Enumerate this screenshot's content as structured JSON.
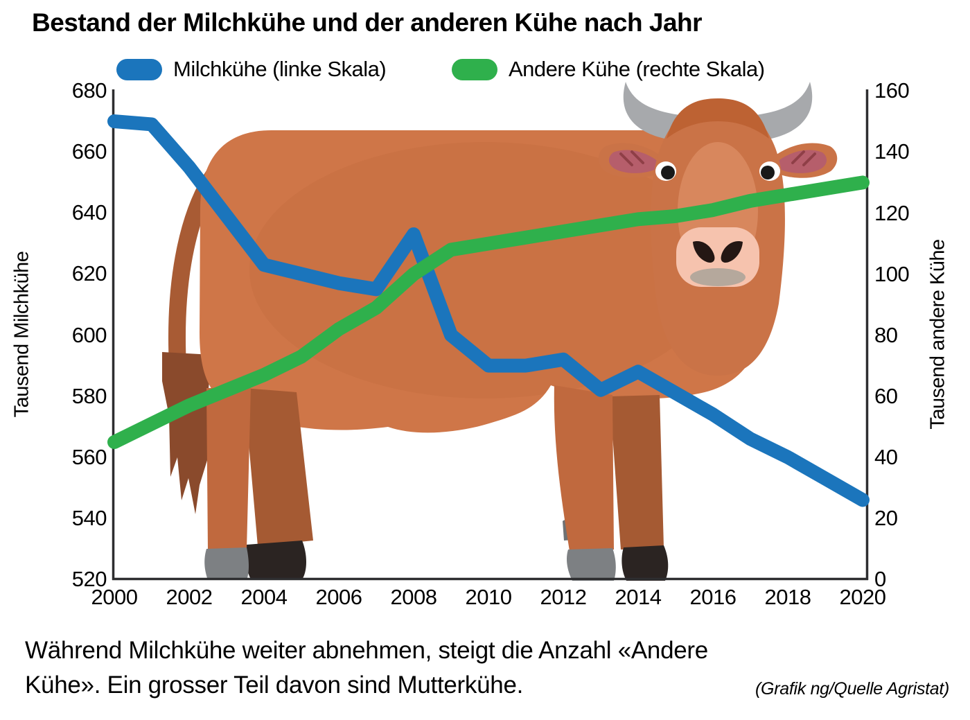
{
  "title": "Bestand der Milchkühe und der anderen Kühe nach Jahr",
  "legend": {
    "milk_label": "Milchkühe (linke Skala)",
    "other_label": "Andere Kühe (rechte Skala)"
  },
  "colors": {
    "milk_line": "#1b75bc",
    "other_line": "#2fb04c",
    "axis": "#2e2e30"
  },
  "chart_data": {
    "type": "line",
    "x": [
      2000,
      2001,
      2002,
      2003,
      2004,
      2005,
      2006,
      2007,
      2008,
      2009,
      2010,
      2011,
      2012,
      2013,
      2014,
      2015,
      2016,
      2017,
      2018,
      2019,
      2020
    ],
    "series": [
      {
        "name": "Milchkühe (linke Skala)",
        "axis": "left",
        "color": "#1b75bc",
        "values": [
          670,
          669,
          655,
          639,
          623,
          620,
          617,
          615,
          633,
          600,
          590,
          590,
          592,
          582,
          588,
          581,
          574,
          566,
          560,
          553,
          546
        ]
      },
      {
        "name": "Andere Kühe (rechte Skala)",
        "axis": "right",
        "color": "#2fb04c",
        "values": [
          45,
          51,
          57,
          62,
          67,
          73,
          82,
          89,
          100,
          108,
          110,
          112,
          114,
          116,
          118,
          119,
          121,
          124,
          126,
          128,
          130
        ]
      }
    ],
    "left_axis": {
      "label": "Tausend Milchkühe",
      "range": [
        520,
        680
      ],
      "ticks": [
        680,
        660,
        640,
        620,
        600,
        580,
        560,
        540,
        520
      ]
    },
    "right_axis": {
      "label": "Tausend andere Kühe",
      "range": [
        0,
        160
      ],
      "ticks": [
        160,
        140,
        120,
        100,
        80,
        60,
        40,
        20,
        0
      ]
    },
    "x_axis": {
      "range": [
        2000,
        2020
      ],
      "ticks": [
        2000,
        2002,
        2004,
        2006,
        2008,
        2010,
        2012,
        2014,
        2016,
        2018,
        2020
      ]
    },
    "grid": false,
    "legend_position": "top"
  },
  "caption": {
    "line1": "Während Milchkühe weiter abnehmen, steigt die Anzahl «Andere",
    "line2": "Kühe». Ein grosser Teil davon sind Mutterkühe.",
    "credit": "(Grafik ng/Quelle Agristat)"
  }
}
